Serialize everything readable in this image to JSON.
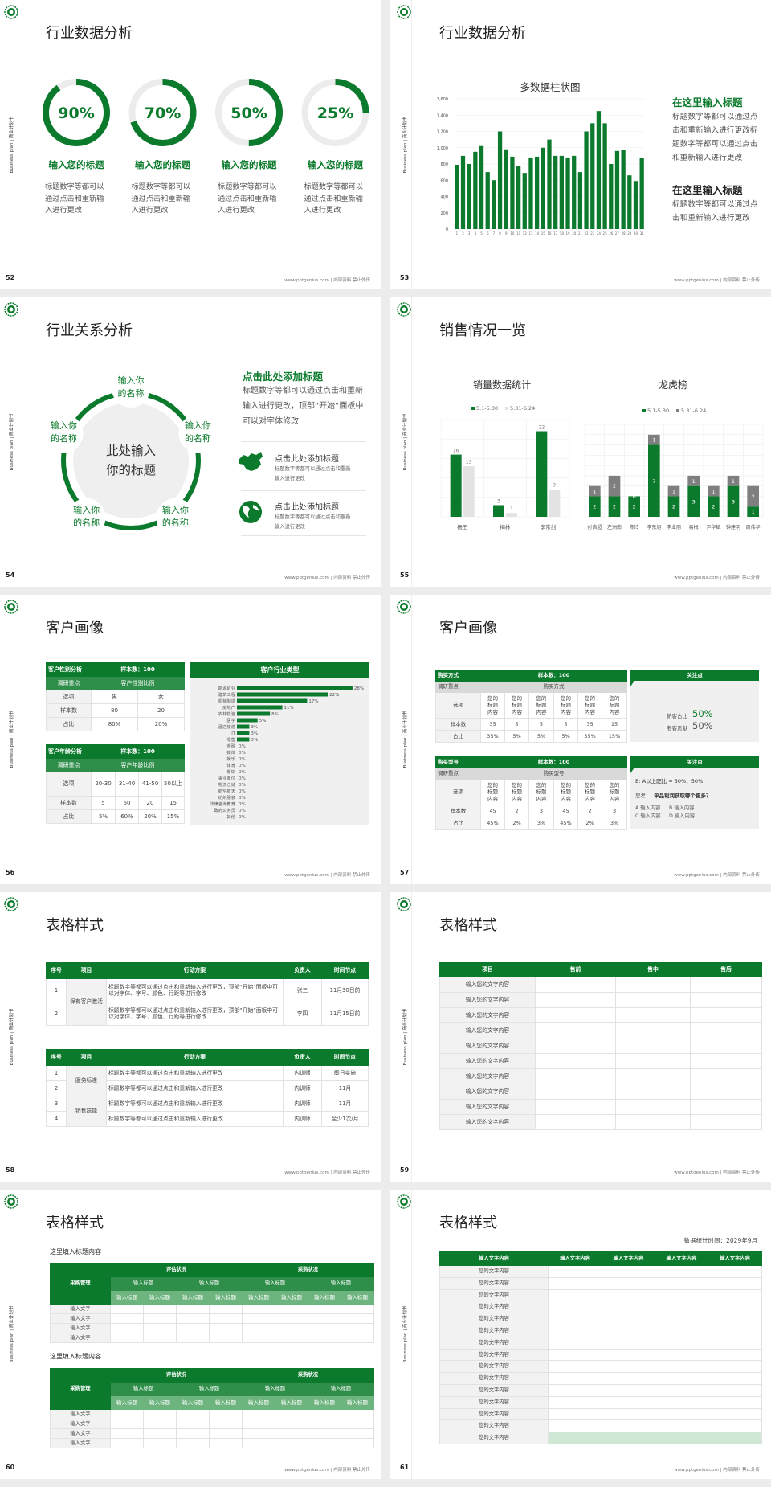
{
  "brand": {
    "side_text": "Business plan | 商业计划书",
    "footer": "www.pptgenius.com | 内部资料 禁止外传",
    "logo": "green-circle-logo"
  },
  "colors": {
    "primary": "#0b7a2c",
    "mid": "#2f8e4a",
    "light": "#6db47f",
    "pale": "#cfe8d5",
    "gray": "#f0f0f0",
    "bar_gray": "#7f7f7f",
    "bar_lightgray": "#e3e3e3"
  },
  "slides": [
    {
      "page": "52",
      "title": "行业数据分析",
      "rings": [
        {
          "value": 90,
          "label": "90%",
          "heading": "输入您的标题",
          "desc": "标题数字等都可以通过点击和重新输入进行更改"
        },
        {
          "value": 70,
          "label": "70%",
          "heading": "输入您的标题",
          "desc": "标题数字等都可以通过点击和重新输入进行更改"
        },
        {
          "value": 50,
          "label": "50%",
          "heading": "输入您的标题",
          "desc": "标题数字等都可以通过点击和重新输入进行更改"
        },
        {
          "value": 25,
          "label": "25%",
          "heading": "输入您的标题",
          "desc": "标题数字等都可以通过点击和重新输入进行更改"
        }
      ]
    },
    {
      "page": "53",
      "title": "行业数据分析",
      "blocks": [
        {
          "heading": "在这里输入标题",
          "body": "标题数字等都可以通过点击和重新输入进行更改标题数字等都可以通过点击和重新输入进行更改"
        },
        {
          "heading": "在这里输入标题",
          "body": "标题数字等都可以通过点击和重新输入进行更改"
        }
      ]
    },
    {
      "page": "54",
      "title": "行业关系分析",
      "center": "此处输入你的标题",
      "nodes": [
        "输入你的名称",
        "输入你的名称",
        "输入你的名称",
        "输入你的名称",
        "输入你的名称"
      ],
      "heading": "点击此处添加标题",
      "body": "标题数字等都可以通过点击和重新输入进行更改，顶部“开始”面板中可以对字体修改",
      "items": [
        {
          "icon": "china-map-icon",
          "title": "点击此处添加标题",
          "desc": "标题数字等都可以通过点击和重新输入进行更改"
        },
        {
          "icon": "globe-icon",
          "title": "点击此处添加标题",
          "desc": "标题数字等都可以通过点击和重新输入进行更改"
        }
      ]
    },
    {
      "page": "55",
      "title": "销售情况一览"
    },
    {
      "page": "56",
      "title": "客户画像",
      "gender": {
        "title": "客户性别分析",
        "sample": "样本数：100",
        "focus": "调研重点",
        "focus_value": "客户性别比例",
        "rows": [
          [
            "选项",
            "男",
            "女"
          ],
          [
            "样本数",
            "80",
            "20"
          ],
          [
            "占比",
            "80%",
            "20%"
          ]
        ]
      },
      "age": {
        "title": "客户年龄分析",
        "sample": "样本数：100",
        "focus": "调研重点",
        "focus_value": "客户年龄比例",
        "rows": [
          [
            "选项",
            "20-30",
            "31-40",
            "41-50",
            "50以上"
          ],
          [
            "样本数",
            "5",
            "60",
            "20",
            "15"
          ],
          [
            "占比",
            "5%",
            "60%",
            "20%",
            "15%"
          ]
        ]
      }
    },
    {
      "page": "57",
      "title": "客户画像",
      "tables": [
        {
          "title": "购买方式",
          "sample": "样本数：100",
          "focus": "调研重点",
          "focus_value": "购买方式",
          "rows": [
            [
              "选项",
              "您的标题内容",
              "您的标题内容",
              "您的标题内容",
              "您的标题内容",
              "您的标题内容",
              "您的标题内容"
            ],
            [
              "样本数",
              "35",
              "5",
              "5",
              "5",
              "35",
              "15"
            ],
            [
              "占比",
              "35%",
              "5%",
              "5%",
              "5%",
              "35%",
              "15%"
            ]
          ]
        },
        {
          "title": "购买型号",
          "sample": "样本数：100",
          "focus": "调研重点",
          "focus_value": "购买型号",
          "rows": [
            [
              "选项",
              "您的标题内容",
              "您的标题内容",
              "您的标题内容",
              "您的标题内容",
              "您的标题内容",
              "您的标题内容"
            ],
            [
              "样本数",
              "45",
              "2",
              "3",
              "45",
              "2",
              "3"
            ],
            [
              "占比",
              "45%",
              "2%",
              "3%",
              "45%",
              "2%",
              "3%"
            ]
          ]
        }
      ],
      "panels": [
        {
          "title": "关注点",
          "lines": [
            {
              "label": "新客占比",
              "value": "50%"
            },
            {
              "label": "老客贡献",
              "value": "50%"
            }
          ]
        },
        {
          "title": "关注点",
          "ratio": "B: A以上配比 = 50%：50%",
          "q_label": "思考：",
          "q_text": "单品利润获取哪个更多？",
          "opts": [
            "A.输入内容",
            "B.输入内容",
            "C.输入内容",
            "D.输入内容"
          ]
        }
      ]
    },
    {
      "page": "58",
      "title": "表格样式",
      "headers": [
        "序号",
        "项目",
        "行动方案",
        "负责人",
        "时间节点"
      ],
      "t1": {
        "rows": [
          [
            "1",
            "保有客户激活",
            "标题数字等都可以通过点击和重新输入进行更改，顶部“开始”面板中可以对字体、字号、颜色、行距等进行修改",
            "张三",
            "11月30日前"
          ],
          [
            "2",
            "标题数字等都可以通过点击和重新输入进行更改，顶部“开始”面板中可以对字体、字号、颜色、行距等进行修改",
            "李四",
            "11月15日前"
          ]
        ]
      },
      "t2": {
        "rows": [
          [
            "1",
            "服务标准",
            "标题数字等都可以通过点击和重新输入进行更改",
            "内训师",
            "即日实施"
          ],
          [
            "2",
            "标题数字等都可以通过点击和重新输入进行更改",
            "内训师",
            "11月"
          ],
          [
            "3",
            "销售技能",
            "标题数字等都可以通过点击和重新输入进行更改",
            "内训师",
            "11月"
          ],
          [
            "4",
            "标题数字等都可以通过点击和重新输入进行更改",
            "内训师",
            "至少1次/月"
          ]
        ]
      }
    },
    {
      "page": "59",
      "title": "表格样式",
      "headers": [
        "项目",
        "售前",
        "售中",
        "售后"
      ],
      "rows": [
        "输入您的文字内容",
        "输入您的文字内容",
        "输入您的文字内容",
        "输入您的文字内容",
        "输入您的文字内容",
        "输入您的文字内容",
        "输入您的文字内容",
        "输入您的文字内容",
        "输入您的文字内容",
        "输入您的文字内容"
      ]
    },
    {
      "page": "60",
      "title": "表格样式",
      "sections": [
        {
          "subtitle": "这里填入标题内容",
          "corner": "采购管理",
          "groups": [
            "评估状况",
            "采购状况"
          ],
          "sub": [
            "输入标题",
            "输入标题",
            "输入标题",
            "输入标题"
          ],
          "leaf": "输入标题",
          "rows": [
            "输入文字",
            "输入文字",
            "输入文字",
            "输入文字"
          ]
        },
        {
          "subtitle": "这里填入标题内容",
          "corner": "采购管理",
          "groups": [
            "评估状况",
            "采购状况"
          ],
          "sub": [
            "输入标题",
            "输入标题",
            "输入标题",
            "输入标题"
          ],
          "leaf": "输入标题",
          "rows": [
            "输入文字",
            "输入文字",
            "输入文字",
            "输入文字"
          ]
        }
      ]
    },
    {
      "page": "61",
      "title": "表格样式",
      "note": "数据统计时间：2029年9月",
      "headers": [
        "输入文字内容",
        "输入文字内容",
        "输入文字内容",
        "输入文字内容",
        "输入文字内容"
      ],
      "rows": [
        "您的文字内容",
        "您的文字内容",
        "您的文字内容",
        "您的文字内容",
        "您的文字内容",
        "您的文字内容",
        "您的文字内容",
        "您的文字内容",
        "您的文字内容",
        "您的文字内容",
        "您的文字内容",
        "您的文字内容",
        "您的文字内容",
        "您的文字内容",
        "您的文字内容"
      ]
    }
  ],
  "chart_data": [
    {
      "type": "bar",
      "title": "多数据柱状图",
      "ylim": [
        0,
        1600
      ],
      "yticks": [
        "0",
        "200",
        "400",
        "600",
        "800",
        "1,000",
        "1,200",
        "1,400",
        "1,600"
      ],
      "categories": [
        "1",
        "2",
        "3",
        "4",
        "5",
        "6",
        "7",
        "8",
        "9",
        "10",
        "11",
        "12",
        "13",
        "14",
        "15",
        "16",
        "17",
        "18",
        "19",
        "20",
        "21",
        "22",
        "23",
        "24",
        "25",
        "26",
        "27",
        "28",
        "29",
        "30",
        "31"
      ],
      "values": [
        790,
        900,
        800,
        950,
        1020,
        700,
        600,
        1200,
        980,
        890,
        770,
        690,
        880,
        890,
        1000,
        1100,
        900,
        900,
        880,
        900,
        700,
        1200,
        1300,
        1450,
        1300,
        800,
        960,
        970,
        660,
        590,
        870
      ],
      "grid": true
    },
    {
      "type": "bar",
      "title": "销量数据统计",
      "ylim": [
        0,
        25
      ],
      "legend": "top",
      "categories": [
        "杨田",
        "梅林",
        "李常剑"
      ],
      "series": [
        {
          "name": "5.1-5.30",
          "values": [
            16,
            3,
            22
          ]
        },
        {
          "name": "5.31-6.24",
          "values": [
            13,
            1,
            7
          ]
        }
      ],
      "grid": true
    },
    {
      "type": "bar",
      "stacked": true,
      "title": "龙虎榜",
      "ylim": [
        0,
        9
      ],
      "legend": "top",
      "categories": [
        "付自超",
        "左洲南",
        "陈玲",
        "李东旭",
        "李业丽",
        "易梅",
        "尹华斌",
        "钟建明",
        "周伟华"
      ],
      "series": [
        {
          "name": "5.1-5.30",
          "values": [
            2,
            2,
            2,
            7,
            2,
            3,
            2,
            3,
            1
          ]
        },
        {
          "name": "5.31-6.24",
          "values": [
            1,
            2,
            0,
            1,
            1,
            1,
            1,
            1,
            2
          ]
        }
      ],
      "grid": true
    },
    {
      "type": "bar",
      "orientation": "horizontal",
      "title": "客户行业类型",
      "categories": [
        "能源矿业",
        "建筑工程",
        "机械制造",
        "房地产",
        "农林牧渔",
        "医学",
        "酒店旅游",
        "IT",
        "零售",
        "金融",
        "媒体",
        "娱乐",
        "体育",
        "餐饮",
        "事业单位",
        "物流仓储",
        "航空航天",
        "纺织服装",
        "法律咨询教育",
        "政府公务员",
        "其他"
      ],
      "values": [
        28,
        22,
        17,
        11,
        8,
        5,
        3,
        3,
        3,
        0,
        0,
        0,
        0,
        0,
        0,
        0,
        0,
        0,
        0,
        0,
        0
      ],
      "labels": [
        "28%",
        "22%",
        "17%",
        "11%",
        "8%",
        "5%",
        "3%",
        "3%",
        "3%",
        "0%",
        "0%",
        "0%",
        "0%",
        "0%",
        "0%",
        "0%",
        "0%",
        "0%",
        "0%",
        "0%",
        "0%"
      ]
    }
  ]
}
